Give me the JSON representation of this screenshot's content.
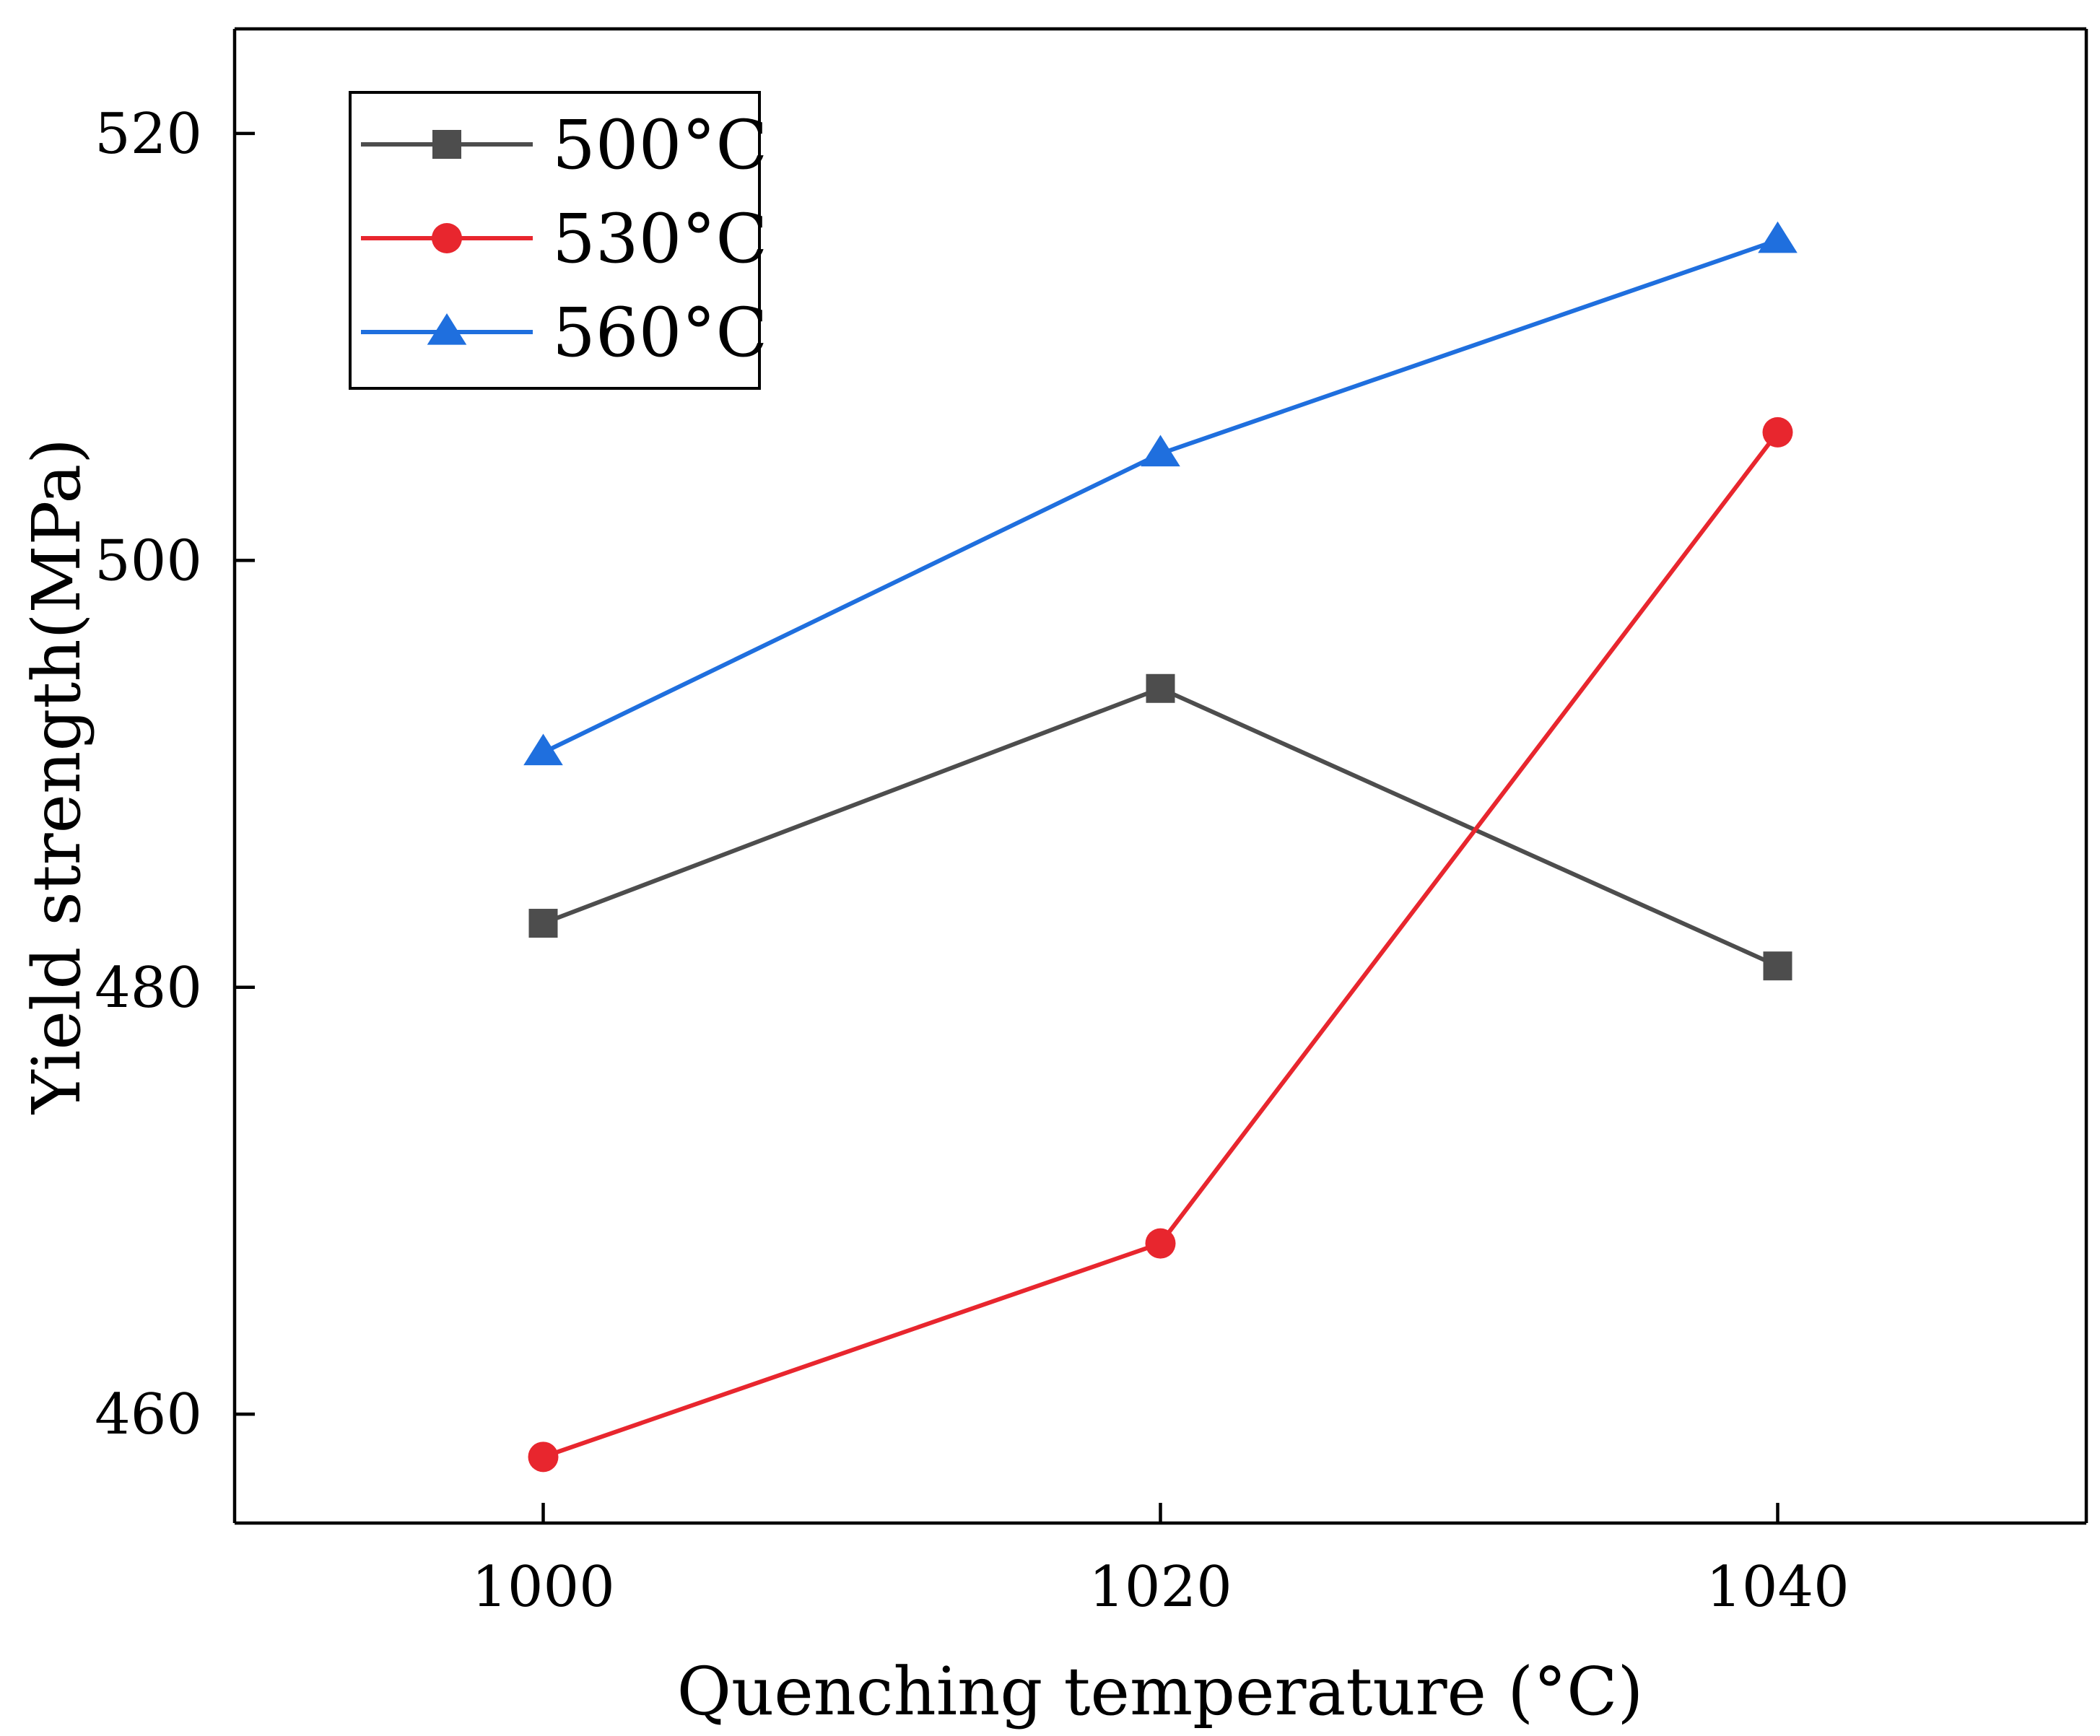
{
  "chart_data": {
    "type": "line",
    "title": "",
    "xlabel": "Quenching temperature (°C)",
    "ylabel": "Yield strength(MPa)",
    "x": [
      1000,
      1020,
      1040
    ],
    "x_tick_labels": [
      "1000",
      "1020",
      "1040"
    ],
    "xlim": [
      990,
      1050
    ],
    "y_ticks": [
      460,
      480,
      500,
      520
    ],
    "y_tick_labels": [
      "460",
      "480",
      "500",
      "520"
    ],
    "ylim": [
      454.9,
      524.9
    ],
    "grid": false,
    "legend_position": "top-left",
    "series": [
      {
        "name": "500°C",
        "values": [
          483,
          494,
          481
        ],
        "color": "#4d4d4d",
        "marker": "square"
      },
      {
        "name": "530°C",
        "values": [
          458,
          468,
          506
        ],
        "color": "#e8262e",
        "marker": "circle"
      },
      {
        "name": "560°C",
        "values": [
          491,
          505,
          515
        ],
        "color": "#1f6fde",
        "marker": "triangle"
      }
    ]
  }
}
